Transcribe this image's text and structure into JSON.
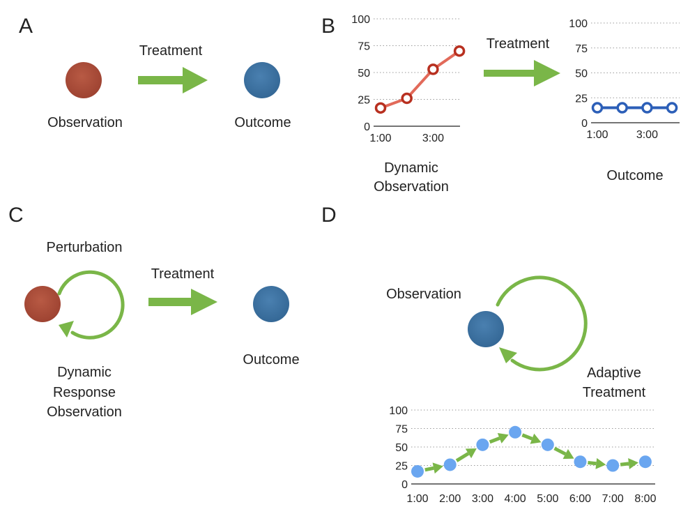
{
  "colors": {
    "red_node": "#a84a36",
    "blue_node": "#3a6e9c",
    "arrow_green": "#7ab648",
    "red_series": "#b83020",
    "red_series_line": "#e26a5a",
    "blue_series": "#2c5fb8",
    "light_blue_point": "#6aa6f0"
  },
  "panels": {
    "a": {
      "letter": "A",
      "treatment_label": "Treatment",
      "left_label": "Observation",
      "right_label": "Outcome"
    },
    "b": {
      "letter": "B",
      "treatment_label": "Treatment",
      "left_caption_line1": "Dynamic",
      "left_caption_line2": "Observation",
      "right_caption": "Outcome"
    },
    "c": {
      "letter": "C",
      "top_label": "Perturbation",
      "treatment_label": "Treatment",
      "bottom_label_line1": "Dynamic",
      "bottom_label_line2": "Response",
      "bottom_label_line3": "Observation",
      "right_label": "Outcome"
    },
    "d": {
      "letter": "D",
      "top_label": "Observation",
      "loop_label_line1": "Adaptive",
      "loop_label_line2": "Treatment"
    }
  },
  "chart_data": [
    {
      "id": "b-left",
      "type": "line",
      "x_tick_labels": [
        "1:00",
        "3:00"
      ],
      "x_tick_positions": [
        1,
        3
      ],
      "x": [
        1,
        2,
        3,
        4
      ],
      "series": [
        {
          "values": [
            17,
            26,
            53,
            70
          ]
        }
      ],
      "yticks": [
        0,
        25,
        50,
        75,
        100
      ],
      "ylim": [
        0,
        100
      ],
      "grid": true
    },
    {
      "id": "b-right",
      "type": "line",
      "x_tick_labels": [
        "1:00",
        "3:00"
      ],
      "x_tick_positions": [
        1,
        3
      ],
      "x": [
        1,
        2,
        3,
        4
      ],
      "series": [
        {
          "values": [
            15,
            15,
            15,
            15
          ]
        }
      ],
      "yticks": [
        0,
        25,
        50,
        75,
        100
      ],
      "ylim": [
        0,
        100
      ],
      "grid": true
    },
    {
      "id": "d",
      "type": "line",
      "x_tick_labels": [
        "1:00",
        "2:00",
        "3:00",
        "4:00",
        "5:00",
        "6:00",
        "7:00",
        "8:00"
      ],
      "x_tick_positions": [
        1,
        2,
        3,
        4,
        5,
        6,
        7,
        8
      ],
      "x": [
        1,
        2,
        3,
        4,
        5,
        6,
        7,
        8
      ],
      "series": [
        {
          "values": [
            17,
            26,
            53,
            70,
            53,
            30,
            25,
            30
          ]
        }
      ],
      "yticks": [
        0,
        25,
        50,
        75,
        100
      ],
      "ylim": [
        0,
        100
      ],
      "grid": true
    }
  ]
}
